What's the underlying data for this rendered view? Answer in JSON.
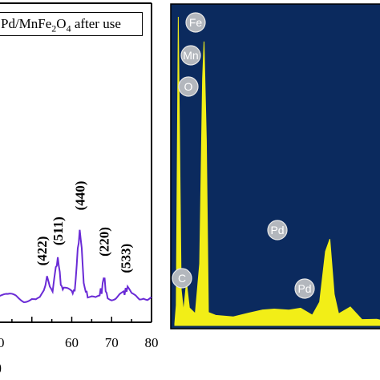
{
  "chart_data": [
    {
      "type": "line",
      "legend": {
        "text_parts": [
          "Pd/MnFe",
          "2",
          "O",
          "4",
          " after use"
        ],
        "position": "top-left"
      },
      "xlim": [
        40,
        80
      ],
      "xticks": [
        "60",
        "70",
        "80"
      ],
      "partial_tick_labels": [
        "0"
      ],
      "series_color": "#6a2bd6",
      "series": [
        {
          "x": [
            40,
            42,
            44,
            46,
            48,
            50,
            51,
            52,
            53,
            53.8,
            54.5,
            55.2,
            56,
            56.5,
            57,
            57.5,
            58,
            59,
            60,
            60.5,
            61,
            61.5,
            62,
            62.5,
            63,
            63.5,
            64,
            65,
            66,
            67,
            67.5,
            68,
            68.5,
            69,
            70,
            71,
            72,
            73,
            73.5,
            74,
            75,
            76,
            77,
            78,
            79,
            80
          ],
          "y": [
            4,
            5,
            4,
            5,
            4,
            5,
            4,
            5,
            9,
            16,
            10,
            8,
            22,
            25,
            18,
            10,
            8,
            7,
            6,
            8,
            14,
            30,
            42,
            30,
            14,
            7,
            6,
            6,
            5,
            6,
            9,
            16,
            9,
            6,
            5,
            5,
            6,
            6,
            10,
            8,
            5,
            5,
            4,
            5,
            4,
            5
          ]
        }
      ],
      "annotations": [
        {
          "label": "(422)",
          "x": 52.5,
          "y": 22
        },
        {
          "label": "(511)",
          "x": 56.5,
          "y": 33
        },
        {
          "label": "(440)",
          "x": 62,
          "y": 52
        },
        {
          "label": "(220)",
          "x": 68,
          "y": 27
        },
        {
          "label": "(533)",
          "x": 73.5,
          "y": 18
        }
      ]
    },
    {
      "type": "area",
      "background": "#0b2a5e",
      "fill_color": "#f2ee17",
      "x": [
        0,
        1,
        2,
        3,
        4,
        5,
        6,
        7,
        8,
        9,
        10,
        11,
        12,
        13,
        14,
        15,
        16,
        17,
        18,
        19,
        20
      ],
      "y": [
        100,
        8,
        30,
        12,
        6,
        5,
        5,
        6,
        7,
        6,
        5,
        5,
        6,
        5,
        4,
        4,
        5,
        4,
        3,
        3,
        3
      ],
      "peaks": [
        {
          "label": "Fe",
          "x": 1.0,
          "y": 90
        },
        {
          "label": "Mn",
          "x": 1.0,
          "y": 79
        },
        {
          "label": "O",
          "x": 1.0,
          "y": 69
        },
        {
          "label": "C",
          "x": 0.4,
          "y": 14
        },
        {
          "label": "Pd",
          "x": 5.3,
          "y": 28
        },
        {
          "label": "Pd",
          "x": 6.0,
          "y": 10
        }
      ]
    }
  ]
}
